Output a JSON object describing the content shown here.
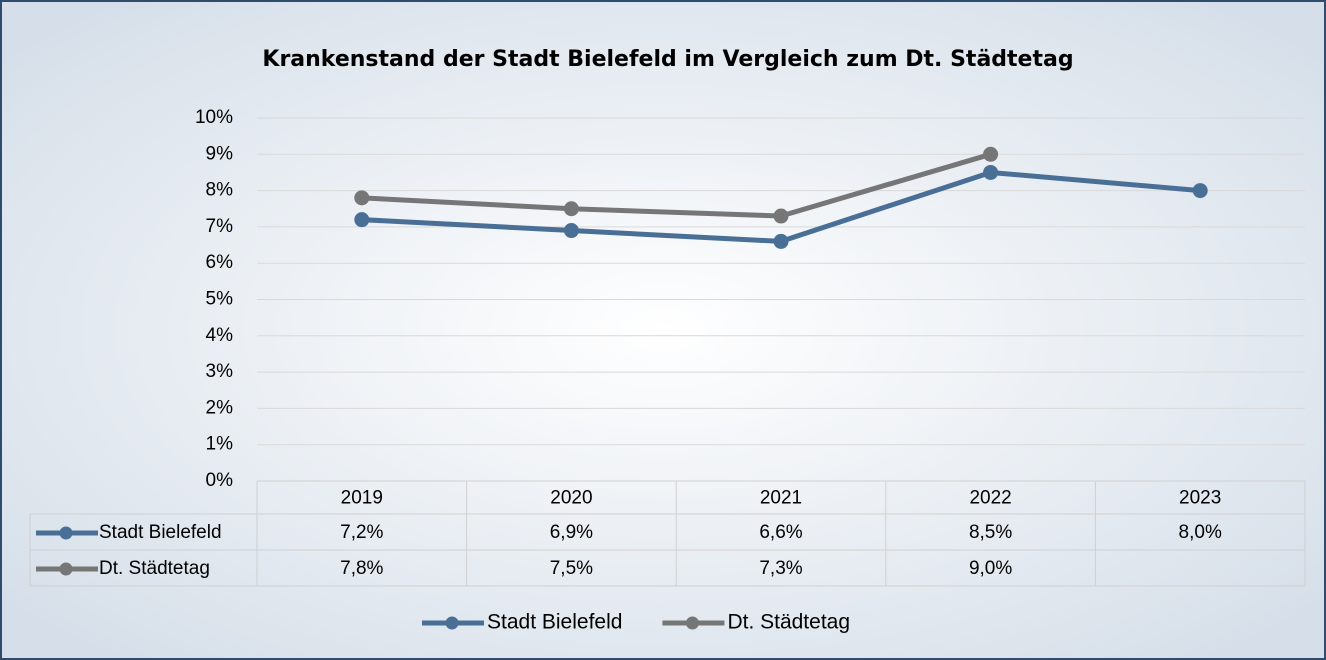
{
  "chart_data": {
    "type": "line",
    "title": "Krankenstand der Stadt Bielefeld im Vergleich zum Dt. Städtetag",
    "categories": [
      "2019",
      "2020",
      "2021",
      "2022",
      "2023"
    ],
    "series": [
      {
        "name": "Stadt Bielefeld",
        "color": "#4a6f96",
        "values": [
          7.2,
          6.9,
          6.6,
          8.5,
          8.0
        ],
        "value_labels": [
          "7,2%",
          "6,9%",
          "6,6%",
          "8,5%",
          "8,0%"
        ]
      },
      {
        "name": "Dt. Städtetag",
        "color": "#767676",
        "values": [
          7.8,
          7.5,
          7.3,
          9.0,
          null
        ],
        "value_labels": [
          "7,8%",
          "7,5%",
          "7,3%",
          "9,0%",
          null
        ]
      }
    ],
    "ylim": [
      0,
      10
    ],
    "yticks": [
      {
        "value": 0,
        "label": "0%"
      },
      {
        "value": 1,
        "label": "1%"
      },
      {
        "value": 2,
        "label": "2%"
      },
      {
        "value": 3,
        "label": "3%"
      },
      {
        "value": 4,
        "label": "4%"
      },
      {
        "value": 5,
        "label": "5%"
      },
      {
        "value": 6,
        "label": "6%"
      },
      {
        "value": 7,
        "label": "7%"
      },
      {
        "value": 8,
        "label": "8%"
      },
      {
        "value": 9,
        "label": "9%"
      },
      {
        "value": 10,
        "label": "10%"
      }
    ],
    "grid": true,
    "legend": "bottom"
  }
}
